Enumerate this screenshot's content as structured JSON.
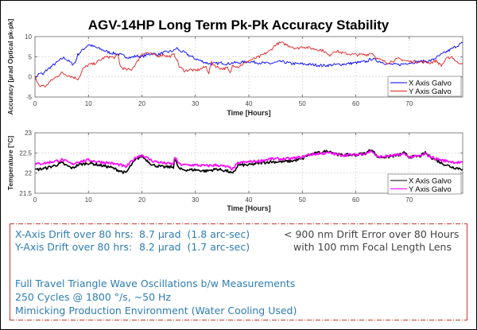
{
  "chart_data": [
    {
      "type": "line",
      "title": "AGV-14HP Long Term Pk-Pk Accuracy Stability",
      "xlabel": "Time [Hours]",
      "ylabel": "Accuracy [µrad Optical pk-pk]",
      "xlim": [
        0,
        80
      ],
      "ylim": [
        -5,
        10
      ],
      "xticks": [
        0,
        10,
        20,
        30,
        40,
        50,
        60,
        70
      ],
      "yticks": [
        -5,
        0,
        5,
        10
      ],
      "grid": true,
      "legend_position": "bottom-right",
      "series": [
        {
          "name": "X Axis Galvo",
          "color": "#0000ff",
          "x": [
            0,
            0.5,
            1,
            1.5,
            2,
            3,
            4,
            5,
            5.5,
            6,
            7,
            7.5,
            8,
            9,
            10,
            11,
            12,
            13,
            14,
            15,
            16,
            17,
            18,
            19,
            20,
            21,
            22,
            23,
            24,
            25,
            26,
            26.5,
            27,
            28,
            29,
            30,
            31,
            32,
            33,
            34,
            35,
            36,
            37,
            38,
            40,
            42,
            44,
            46,
            48,
            50,
            52,
            54,
            56,
            58,
            60,
            62,
            63,
            64,
            66,
            68,
            70,
            72,
            74,
            76,
            78,
            80
          ],
          "y": [
            -0.5,
            0.5,
            1,
            0.5,
            1.5,
            2.5,
            3.5,
            4.5,
            4.8,
            4.2,
            3.2,
            3.5,
            5.5,
            6.8,
            8,
            7.5,
            7,
            6.5,
            6,
            5.8,
            5.5,
            5,
            4.8,
            5.2,
            5,
            5.5,
            5.8,
            5.5,
            6,
            6.2,
            6.5,
            7.2,
            6.5,
            6,
            5.2,
            4.5,
            4,
            3.5,
            3.2,
            3.3,
            3.5,
            3.2,
            3.5,
            3.5,
            3.8,
            3.5,
            3.3,
            3.8,
            3.3,
            3.2,
            3.0,
            2.8,
            3.0,
            3.2,
            3.5,
            3.8,
            4.5,
            4.0,
            3.2,
            3.0,
            3.5,
            3.8,
            4.0,
            5.5,
            7.0,
            8.5
          ]
        },
        {
          "name": "Y Axis Galvo",
          "color": "#e02020",
          "x": [
            0,
            0.5,
            1,
            1.5,
            2,
            2.5,
            3,
            4,
            5,
            6,
            7,
            8,
            8.5,
            9,
            10,
            11,
            12,
            13,
            14,
            15,
            15.5,
            16,
            17,
            18,
            19,
            20,
            21,
            22,
            23,
            24,
            25,
            26,
            26.5,
            27,
            28,
            29,
            30,
            31,
            32,
            32.5,
            33,
            34,
            35,
            36,
            36.5,
            37,
            38,
            40,
            42,
            44,
            45,
            46,
            48,
            49,
            50,
            52,
            54,
            55,
            56,
            58,
            60,
            62,
            63,
            64,
            66,
            68,
            70,
            72,
            74,
            75,
            76,
            77,
            78,
            79,
            80
          ],
          "y": [
            0,
            -1.5,
            -2.5,
            -2,
            -2.5,
            -1.5,
            -1,
            0,
            1,
            0.5,
            0,
            -0.5,
            0.5,
            2,
            3,
            3.2,
            4,
            4.8,
            5,
            4.8,
            5.5,
            2.5,
            1.8,
            1.8,
            3.5,
            5.8,
            6,
            5.5,
            5.2,
            5.5,
            5.0,
            5.5,
            4.5,
            2.5,
            1.5,
            1.8,
            1.5,
            2,
            2.5,
            1.0,
            3.5,
            2.5,
            2.0,
            2.2,
            0.8,
            3.0,
            2.5,
            4,
            5,
            6.5,
            8,
            8.5,
            7.5,
            7.0,
            7.5,
            7.0,
            6.5,
            5.2,
            6.5,
            5.8,
            5.5,
            5.5,
            6.0,
            4.5,
            3.5,
            4.5,
            3.8,
            3.8,
            3.5,
            4.0,
            2.8,
            4.5,
            5.0,
            3.5,
            3.5
          ]
        }
      ]
    },
    {
      "type": "line",
      "title": "",
      "xlabel": "Time [Hours]",
      "ylabel": "Temperature [°C]",
      "xlim": [
        0,
        80
      ],
      "ylim": [
        21.5,
        23
      ],
      "xticks": [
        0,
        10,
        20,
        30,
        40,
        50,
        60,
        70
      ],
      "yticks": [
        21.5,
        22,
        22.5,
        23
      ],
      "grid": true,
      "legend_position": "bottom-right",
      "series": [
        {
          "name": "X Axis Galvo",
          "color": "#000000",
          "x": [
            0,
            2,
            4,
            5,
            6,
            7,
            8,
            10,
            12,
            14,
            16,
            17,
            18,
            19,
            20,
            22,
            24,
            25.9,
            26.1,
            27,
            28,
            30,
            32,
            34,
            36,
            37,
            38,
            40,
            42,
            44,
            46,
            48,
            50,
            51,
            53,
            55,
            57,
            60,
            62,
            63,
            64,
            66,
            68,
            69,
            70,
            72,
            73,
            74,
            76,
            78,
            80
          ],
          "y": [
            22.08,
            22.12,
            22.2,
            22.25,
            22.18,
            22.12,
            22.2,
            22.25,
            22.2,
            22.15,
            22.05,
            22.0,
            22.2,
            22.35,
            22.42,
            22.2,
            22.15,
            22.15,
            22.35,
            22.1,
            22.08,
            22.08,
            22.05,
            22.1,
            22.05,
            21.98,
            22.2,
            22.2,
            22.25,
            22.28,
            22.28,
            22.3,
            22.35,
            22.45,
            22.5,
            22.55,
            22.45,
            22.45,
            22.5,
            22.6,
            22.4,
            22.4,
            22.45,
            22.5,
            22.4,
            22.42,
            22.5,
            22.4,
            22.25,
            22.15,
            22.1
          ]
        },
        {
          "name": "Y Axis Galvo",
          "color": "#ff00ff",
          "x": [
            0,
            2,
            4,
            5,
            6,
            7,
            8,
            10,
            12,
            14,
            16,
            17,
            18,
            19,
            20,
            22,
            24,
            25.9,
            26.1,
            27,
            28,
            30,
            32,
            34,
            36,
            37,
            38,
            40,
            42,
            44,
            46,
            48,
            50,
            51,
            53,
            55,
            57,
            60,
            62,
            63,
            64,
            66,
            68,
            69,
            70,
            72,
            73,
            74,
            76,
            78,
            80
          ],
          "y": [
            22.22,
            22.25,
            22.3,
            22.33,
            22.28,
            22.22,
            22.28,
            22.32,
            22.28,
            22.25,
            22.2,
            22.15,
            22.28,
            22.4,
            22.45,
            22.3,
            22.25,
            22.22,
            22.4,
            22.22,
            22.2,
            22.2,
            22.18,
            22.2,
            22.15,
            22.1,
            22.25,
            22.28,
            22.3,
            22.35,
            22.35,
            22.36,
            22.4,
            22.45,
            22.48,
            22.5,
            22.45,
            22.45,
            22.5,
            22.55,
            22.4,
            22.42,
            22.45,
            22.48,
            22.4,
            22.42,
            22.48,
            22.4,
            22.32,
            22.28,
            22.25
          ]
        }
      ]
    }
  ],
  "info": {
    "x_drift_label": "X-Axis Drift over 80 hrs:",
    "x_drift_value": "8.7 µrad  (1.8 arc-sec)",
    "y_drift_label": "Y-Axis Drift over 80 hrs:",
    "y_drift_value": "8.2 µrad  (1.7 arc-sec)",
    "drift_error_line1": "< 900 nm Drift Error over 80 Hours",
    "drift_error_line2": "with 100 mm Focal Length Lens",
    "note1": "Full Travel Triangle Wave Oscillations b/w Measurements",
    "note2": "250 Cycles @ 1800 °/s, ~50 Hz",
    "note3": "Mimicking Production Environment (Water Cooling Used)"
  }
}
